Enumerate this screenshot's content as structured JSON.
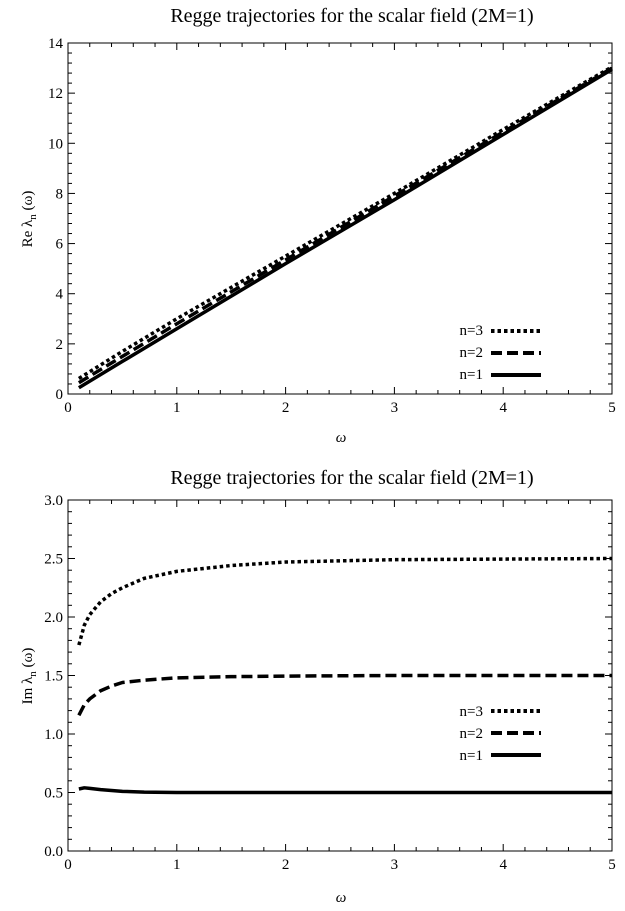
{
  "chart_data": [
    {
      "type": "line",
      "title": "Regge trajectories for the scalar field (2M=1)",
      "xlabel": "ω",
      "ylabel_main": "Re λ",
      "ylabel_sub": "n",
      "ylabel_tail": " (ω)",
      "xlim": [
        0,
        5
      ],
      "ylim": [
        0,
        14
      ],
      "xticks": [
        0,
        1,
        2,
        3,
        4,
        5
      ],
      "yticks": [
        0,
        2,
        4,
        6,
        8,
        10,
        12,
        14
      ],
      "xtick_labels": [
        "0",
        "1",
        "2",
        "3",
        "4",
        "5"
      ],
      "ytick_labels": [
        "0",
        "2",
        "4",
        "6",
        "8",
        "10",
        "12",
        "14"
      ],
      "legend_position": "bottom-right",
      "series": [
        {
          "name": "n=3",
          "style": "dotted",
          "x": [
            0.1,
            0.5,
            1,
            2,
            3,
            4,
            5
          ],
          "y": [
            0.62,
            1.7,
            3.0,
            5.5,
            8.0,
            10.55,
            13.05
          ]
        },
        {
          "name": "n=2",
          "style": "dashed",
          "x": [
            0.1,
            0.5,
            1,
            2,
            3,
            4,
            5
          ],
          "y": [
            0.45,
            1.5,
            2.8,
            5.35,
            7.9,
            10.45,
            13.0
          ]
        },
        {
          "name": "n=1",
          "style": "solid",
          "x": [
            0.1,
            0.5,
            1,
            2,
            3,
            4,
            5
          ],
          "y": [
            0.25,
            1.3,
            2.6,
            5.2,
            7.75,
            10.35,
            12.95
          ]
        }
      ]
    },
    {
      "type": "line",
      "title": "Regge trajectories for the scalar field (2M=1)",
      "xlabel": "ω",
      "ylabel_main": "Im λ",
      "ylabel_sub": "n",
      "ylabel_tail": " (ω)",
      "xlim": [
        0,
        5
      ],
      "ylim": [
        0,
        3
      ],
      "xticks": [
        0,
        1,
        2,
        3,
        4,
        5
      ],
      "yticks": [
        0,
        0.5,
        1,
        1.5,
        2,
        2.5,
        3
      ],
      "xtick_labels": [
        "0",
        "1",
        "2",
        "3",
        "4",
        "5"
      ],
      "ytick_labels": [
        "0.0",
        "0.5",
        "1.0",
        "1.5",
        "2.0",
        "2.5",
        "3.0"
      ],
      "legend_position": "right",
      "series": [
        {
          "name": "n=3",
          "style": "dotted",
          "x": [
            0.1,
            0.15,
            0.2,
            0.3,
            0.4,
            0.5,
            0.7,
            1,
            1.5,
            2,
            3,
            4,
            5
          ],
          "y": [
            1.76,
            1.93,
            2.02,
            2.13,
            2.2,
            2.25,
            2.33,
            2.39,
            2.44,
            2.47,
            2.49,
            2.495,
            2.5
          ]
        },
        {
          "name": "n=2",
          "style": "dashed",
          "x": [
            0.1,
            0.15,
            0.2,
            0.3,
            0.4,
            0.5,
            0.7,
            1,
            1.5,
            2,
            3,
            4,
            5
          ],
          "y": [
            1.16,
            1.25,
            1.3,
            1.37,
            1.41,
            1.44,
            1.46,
            1.48,
            1.49,
            1.495,
            1.5,
            1.5,
            1.5
          ]
        },
        {
          "name": "n=1",
          "style": "solid",
          "x": [
            0.1,
            0.15,
            0.2,
            0.3,
            0.5,
            0.7,
            1,
            1.5,
            2,
            3,
            4,
            5
          ],
          "y": [
            0.53,
            0.54,
            0.535,
            0.525,
            0.51,
            0.503,
            0.5,
            0.5,
            0.5,
            0.5,
            0.5,
            0.5
          ]
        }
      ]
    }
  ]
}
